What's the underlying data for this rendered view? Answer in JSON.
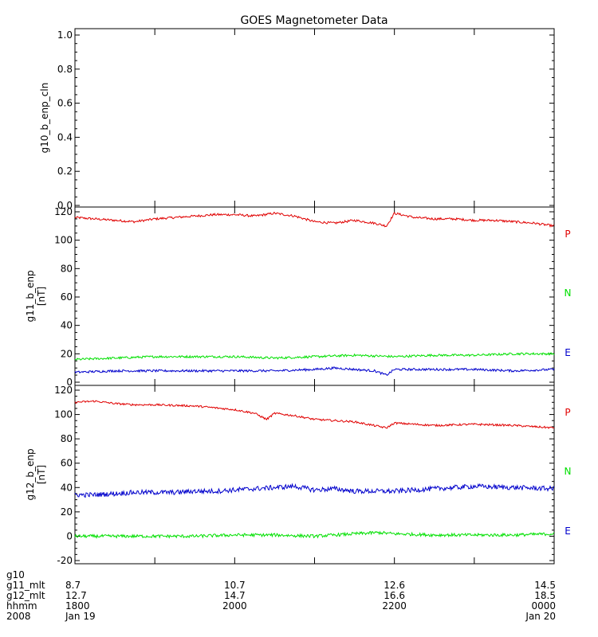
{
  "title": "GOES Magnetometer Data",
  "colors": {
    "P": "#e00000",
    "N": "#00e000",
    "E": "#0000cc",
    "axis": "#000000"
  },
  "chart_data": [
    {
      "type": "line",
      "ylabel": "g10_b_enp_cln",
      "unit": "",
      "ylim": [
        0,
        1.0
      ],
      "yticks": [
        0.0,
        0.2,
        0.4,
        0.6,
        0.8,
        1.0
      ],
      "ytick_labels": [
        "0.0",
        "0.2",
        "0.4",
        "0.6",
        "0.8",
        "1.0"
      ],
      "series": []
    },
    {
      "type": "line",
      "ylabel": "g11_b_enp",
      "unit": "[nT]",
      "ylim": [
        0,
        120
      ],
      "yticks": [
        0,
        20,
        40,
        60,
        80,
        100,
        120
      ],
      "ytick_labels": [
        "0",
        "20",
        "40",
        "60",
        "80",
        "100",
        "120"
      ],
      "series": [
        {
          "name": "P",
          "color": "#e00000",
          "x": [
            0,
            0.25,
            0.5,
            0.75,
            1.0,
            1.25,
            1.5,
            1.75,
            2.0,
            2.25,
            2.5,
            2.75,
            3.0,
            3.25,
            3.5,
            3.75,
            3.9,
            4.0,
            4.25,
            4.5,
            4.75,
            5.0,
            5.25,
            5.5,
            5.75,
            6.0
          ],
          "values": [
            116,
            115,
            114,
            113,
            115,
            116,
            117,
            118,
            118,
            117,
            119,
            117,
            113,
            112,
            114,
            112,
            110,
            119,
            116,
            115,
            115,
            114,
            114,
            113,
            112,
            110
          ]
        },
        {
          "name": "N",
          "color": "#00e000",
          "x": [
            0,
            0.5,
            1.0,
            1.5,
            2.0,
            2.5,
            3.0,
            3.5,
            4.0,
            4.5,
            5.0,
            5.5,
            6.0
          ],
          "values": [
            16,
            17,
            18,
            18,
            18,
            17,
            18,
            19,
            18,
            19,
            19,
            20,
            20
          ]
        },
        {
          "name": "E",
          "color": "#0000cc",
          "x": [
            0,
            0.5,
            1.0,
            1.5,
            2.0,
            2.5,
            3.0,
            3.25,
            3.5,
            3.75,
            3.9,
            4.0,
            4.5,
            5.0,
            5.5,
            6.0
          ],
          "values": [
            7,
            8,
            8,
            8,
            8,
            8,
            9,
            10,
            9,
            8,
            5,
            9,
            9,
            9,
            8,
            9
          ]
        }
      ],
      "legend": [
        "P",
        "N",
        "E"
      ]
    },
    {
      "type": "line",
      "ylabel": "g12_b_enp",
      "unit": "[nT]",
      "ylim": [
        -20,
        120
      ],
      "yticks": [
        -20,
        0,
        20,
        40,
        60,
        80,
        100,
        120
      ],
      "ytick_labels": [
        "-20",
        "0",
        "20",
        "40",
        "60",
        "80",
        "100",
        "120"
      ],
      "series": [
        {
          "name": "P",
          "color": "#e00000",
          "x": [
            0,
            0.25,
            0.5,
            0.75,
            1.0,
            1.5,
            2.0,
            2.25,
            2.4,
            2.5,
            2.75,
            3.0,
            3.5,
            3.9,
            4.0,
            4.5,
            5.0,
            5.5,
            6.0
          ],
          "values": [
            110,
            111,
            109,
            108,
            108,
            107,
            104,
            101,
            96,
            101,
            99,
            96,
            94,
            89,
            93,
            91,
            92,
            91,
            89
          ]
        },
        {
          "name": "N",
          "color": "#00e000",
          "x": [
            0,
            0.5,
            1.0,
            1.5,
            2.0,
            2.5,
            3.0,
            3.5,
            3.8,
            4.0,
            4.5,
            5.0,
            5.5,
            6.0
          ],
          "values": [
            0,
            0,
            0,
            0,
            1,
            1,
            0,
            2,
            3,
            2,
            1,
            1,
            1,
            2
          ]
        },
        {
          "name": "E",
          "color": "#0000cc",
          "x": [
            0,
            0.25,
            0.5,
            0.75,
            1.0,
            1.25,
            1.5,
            1.75,
            2.0,
            2.25,
            2.5,
            2.75,
            3.0,
            3.25,
            3.5,
            3.75,
            4.0,
            4.5,
            5.0,
            5.5,
            6.0
          ],
          "values": [
            34,
            34,
            35,
            36,
            36,
            36,
            37,
            37,
            38,
            39,
            40,
            41,
            38,
            39,
            37,
            37,
            37,
            39,
            41,
            40,
            39
          ]
        }
      ],
      "legend": [
        "P",
        "N",
        "E"
      ]
    }
  ],
  "footer": {
    "rows": [
      {
        "label": "g10",
        "values": [
          "",
          "",
          "",
          ""
        ]
      },
      {
        "label": "g11_mlt",
        "values": [
          "8.7",
          "10.7",
          "12.6",
          "14.5"
        ]
      },
      {
        "label": "g12_mlt",
        "values": [
          "12.7",
          "14.7",
          "16.6",
          "18.5"
        ]
      },
      {
        "label": "hhmm",
        "values": [
          "1800",
          "2000",
          "2200",
          "0000"
        ]
      },
      {
        "label": "2008",
        "values": [
          "Jan 19",
          "",
          "",
          "Jan 20"
        ]
      }
    ]
  }
}
